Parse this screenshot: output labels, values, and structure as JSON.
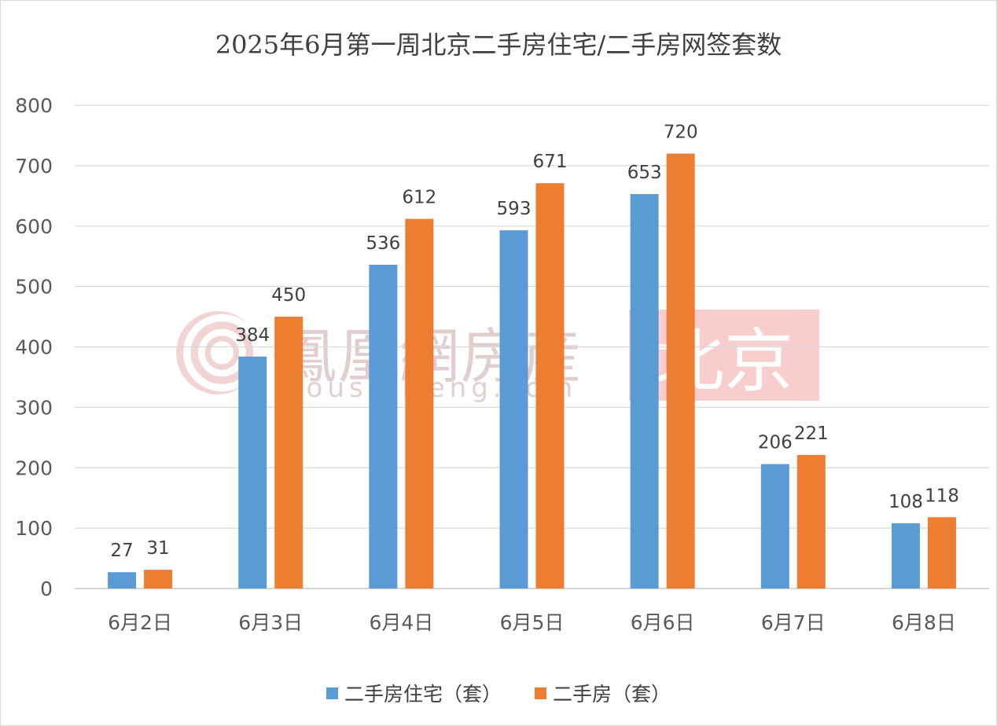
{
  "chart_data": {
    "type": "bar",
    "title": "2025年6月第一周北京二手房住宅/二手房网签套数",
    "categories": [
      "6月2日",
      "6月3日",
      "6月4日",
      "6月5日",
      "6月6日",
      "6月7日",
      "6月8日"
    ],
    "series": [
      {
        "name": "二手房住宅（套）",
        "color": "#5b9bd5",
        "values": [
          27,
          384,
          536,
          593,
          653,
          206,
          108
        ]
      },
      {
        "name": "二手房（套）",
        "color": "#ed7d31",
        "values": [
          31,
          450,
          612,
          671,
          720,
          221,
          118
        ]
      }
    ],
    "ylim": [
      0,
      800
    ],
    "yticks": [
      0,
      100,
      200,
      300,
      400,
      500,
      600,
      700,
      800
    ],
    "grid": true,
    "legend_position": "bottom",
    "data_labels": true
  },
  "watermark": {
    "brand": "鳳凰網房産",
    "url": "house.ifeng.com",
    "region": "北京"
  }
}
